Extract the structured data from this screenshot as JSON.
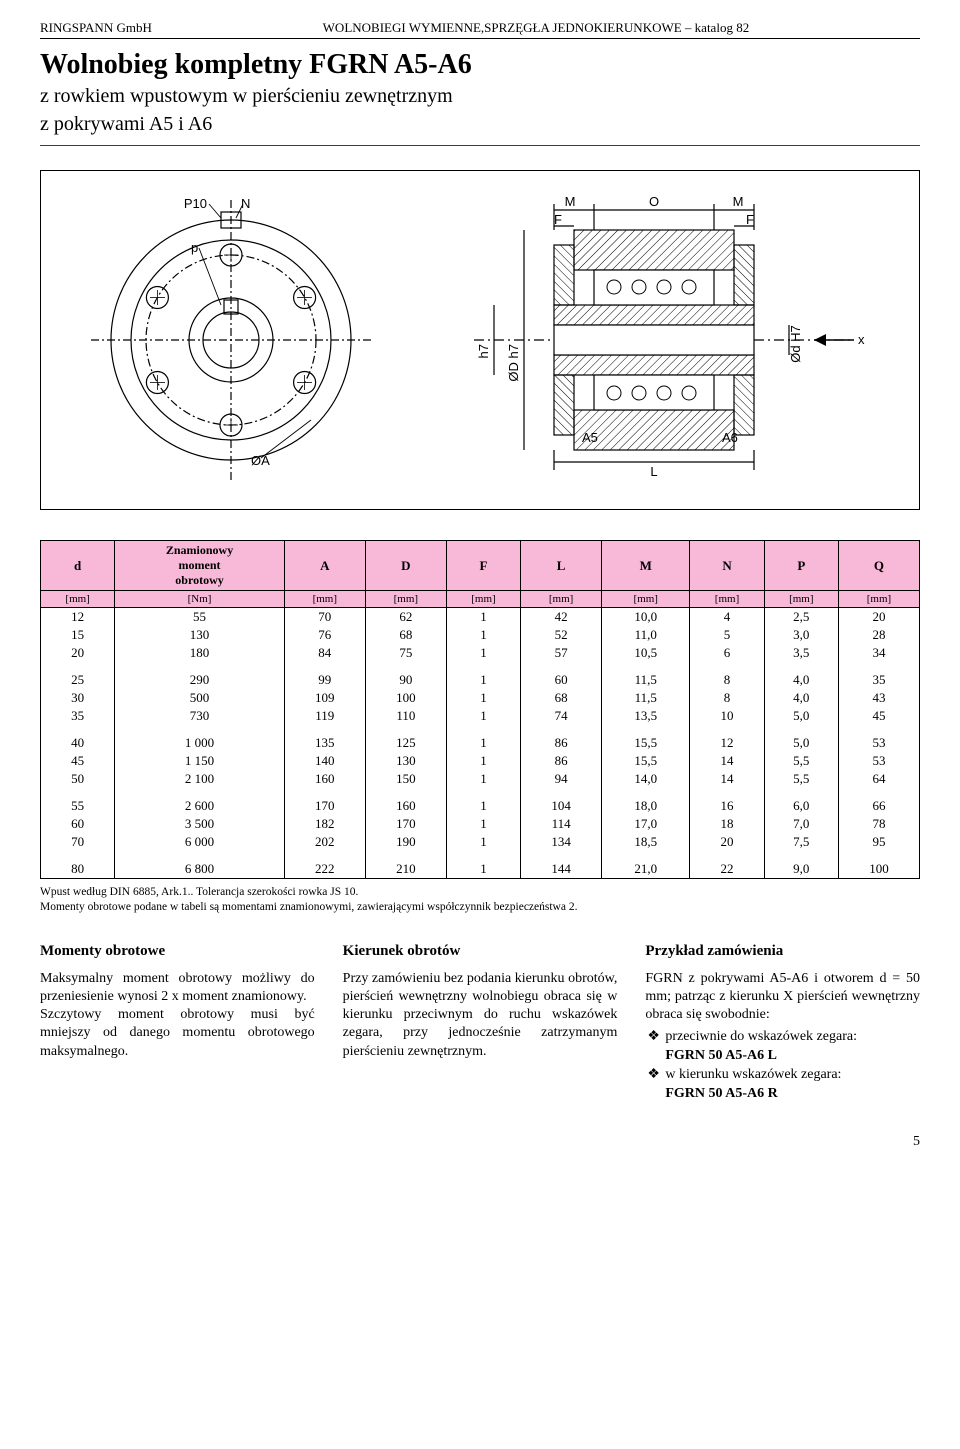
{
  "header": {
    "left": "RINGSPANN GmbH",
    "center": "WOLNOBIEGI WYMIENNE,SPRZĘGŁA JEDNOKIERUNKOWE – katalog 82"
  },
  "title": {
    "main": "Wolnobieg kompletny FGRN A5-A6",
    "sub1": "z  rowkiem wpustowym w pierścieniu zewnętrznym",
    "sub2": "z pokrywami A5 i A6"
  },
  "diagram": {
    "labels": {
      "P10": "P10",
      "N": "N",
      "p": "p",
      "M1": "M",
      "O": "O",
      "M2": "M",
      "F1": "F",
      "F2": "F",
      "phiA": "ØA",
      "phiD": "ØD h7",
      "phid": "Ød H7",
      "L": "L",
      "A5": "A5",
      "A6": "A6",
      "x": "x"
    },
    "stroke": "#000000",
    "hatch": "#000000",
    "bg": "#ffffff"
  },
  "table": {
    "header_bg": "#f8b8d8",
    "columns": [
      {
        "label": "d",
        "sub": "Znamionowy moment obrotowy",
        "unit": "[mm]"
      },
      {
        "label": "",
        "unit": "[Nm]"
      },
      {
        "label": "A",
        "unit": "[mm]"
      },
      {
        "label": "D",
        "unit": "[mm]"
      },
      {
        "label": "F",
        "unit": "[mm]"
      },
      {
        "label": "L",
        "unit": "[mm]"
      },
      {
        "label": "M",
        "unit": "[mm]"
      },
      {
        "label": "N",
        "unit": "[mm]"
      },
      {
        "label": "P",
        "unit": "[mm]"
      },
      {
        "label": "Q",
        "unit": "[mm]"
      }
    ],
    "groups": [
      [
        [
          "12",
          "55",
          "70",
          "62",
          "1",
          "42",
          "10,0",
          "4",
          "2,5",
          "20"
        ],
        [
          "15",
          "130",
          "76",
          "68",
          "1",
          "52",
          "11,0",
          "5",
          "3,0",
          "28"
        ],
        [
          "20",
          "180",
          "84",
          "75",
          "1",
          "57",
          "10,5",
          "6",
          "3,5",
          "34"
        ]
      ],
      [
        [
          "25",
          "290",
          "99",
          "90",
          "1",
          "60",
          "11,5",
          "8",
          "4,0",
          "35"
        ],
        [
          "30",
          "500",
          "109",
          "100",
          "1",
          "68",
          "11,5",
          "8",
          "4,0",
          "43"
        ],
        [
          "35",
          "730",
          "119",
          "110",
          "1",
          "74",
          "13,5",
          "10",
          "5,0",
          "45"
        ]
      ],
      [
        [
          "40",
          "1 000",
          "135",
          "125",
          "1",
          "86",
          "15,5",
          "12",
          "5,0",
          "53"
        ],
        [
          "45",
          "1 150",
          "140",
          "130",
          "1",
          "86",
          "15,5",
          "14",
          "5,5",
          "53"
        ],
        [
          "50",
          "2 100",
          "160",
          "150",
          "1",
          "94",
          "14,0",
          "14",
          "5,5",
          "64"
        ]
      ],
      [
        [
          "55",
          "2 600",
          "170",
          "160",
          "1",
          "104",
          "18,0",
          "16",
          "6,0",
          "66"
        ],
        [
          "60",
          "3 500",
          "182",
          "170",
          "1",
          "114",
          "17,0",
          "18",
          "7,0",
          "78"
        ],
        [
          "70",
          "6 000",
          "202",
          "190",
          "1",
          "134",
          "18,5",
          "20",
          "7,5",
          "95"
        ]
      ],
      [
        [
          "80",
          "6 800",
          "222",
          "210",
          "1",
          "144",
          "21,0",
          "22",
          "9,0",
          "100"
        ]
      ]
    ]
  },
  "footnote": {
    "l1": "Wpust według DIN 6885, Ark.1.. Tolerancja szerokości rowka JS 10.",
    "l2": "Momenty obrotowe podane w tabeli są momentami znamionowymi, zawierającymi współczynnik bezpieczeństwa 2."
  },
  "section1": {
    "title": "Momenty obrotowe",
    "p1": "Maksymalny moment obrotowy możliwy do przeniesienie wynosi 2 x moment znamionowy.",
    "p2": "Szczytowy moment obrotowy musi być mniejszy od danego momentu obrotowego maksymalnego."
  },
  "section2": {
    "title": "Kierunek obrotów",
    "p1": "Przy zamówieniu bez podania kierunku obrotów, pierścień wewnętrzny wolnobiegu obraca się w kierunku przeciwnym do ruchu wskazówek zegara, przy jednocześnie zatrzymanym pierścieniu zewnętrznym."
  },
  "section3": {
    "title": "Przykład zamówienia",
    "p1": "FGRN z  pokrywami A5-A6 i otworem d = 50 mm; patrząc z kierunku X pierścień wewnętrzny obraca się swobodnie:",
    "li1a": "przeciwnie do wskazówek zegara:",
    "li1b": "FGRN 50 A5-A6 L",
    "li2a": "w kierunku wskazówek zegara:",
    "li2b": "FGRN 50 A5-A6 R"
  },
  "pagenum": "5"
}
